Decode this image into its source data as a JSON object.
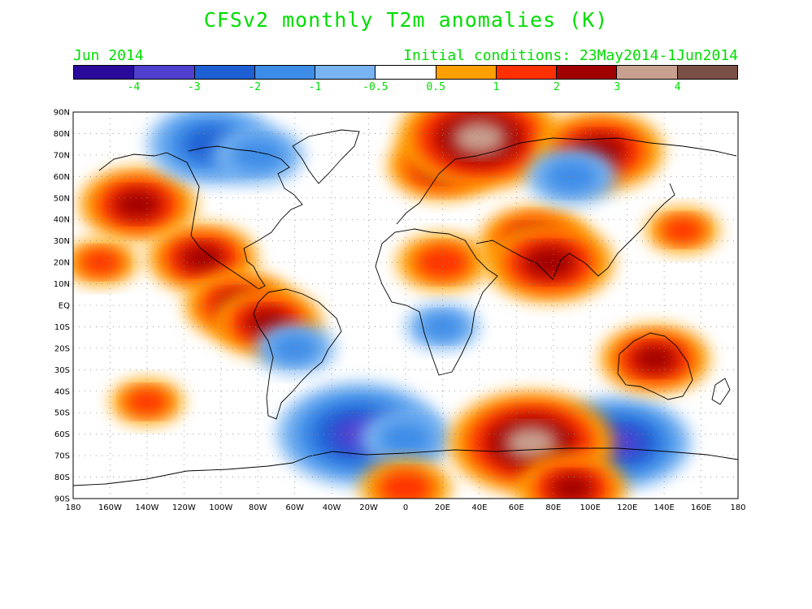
{
  "header": {
    "title": "CFSv2 monthly T2m anomalies (K)",
    "left_label": "Jun 2014",
    "right_label": "Initial conditions: 23May2014-1Jun2014"
  },
  "colorbar": {
    "colors": [
      "#2a0a9a",
      "#5040d0",
      "#1e5fd4",
      "#3c8ce8",
      "#78b4f2",
      "#ffffff",
      "#ffa000",
      "#ff3000",
      "#a00000",
      "#c8a090",
      "#7a5046"
    ],
    "tick_labels": [
      "-4",
      "-3",
      "-2",
      "-1",
      "-0.5",
      "0.5",
      "1",
      "2",
      "3",
      "4"
    ]
  },
  "axes": {
    "lat_labels": [
      "90N",
      "80N",
      "70N",
      "60N",
      "50N",
      "40N",
      "30N",
      "20N",
      "10N",
      "EQ",
      "10S",
      "20S",
      "30S",
      "40S",
      "50S",
      "60S",
      "70S",
      "80S",
      "90S"
    ],
    "lon_labels": [
      "180",
      "160W",
      "140W",
      "120W",
      "100W",
      "80W",
      "60W",
      "40W",
      "20W",
      "0",
      "20E",
      "40E",
      "60E",
      "80E",
      "100E",
      "120E",
      "140E",
      "160E",
      "180"
    ],
    "grid": "dotted"
  },
  "chart_data": {
    "type": "heatmap",
    "title": "CFSv2 monthly T2m anomalies (K)",
    "xlim": [
      -180,
      180
    ],
    "ylim": [
      -90,
      90
    ],
    "color_levels": [
      -4,
      -3,
      -2,
      -1,
      -0.5,
      0.5,
      1,
      2,
      3,
      4
    ],
    "units": "K",
    "anomaly_regions": [
      {
        "lon": -145,
        "lat": 47,
        "value": 2.2
      },
      {
        "lon": -110,
        "lat": 22,
        "value": 2.0
      },
      {
        "lon": -90,
        "lat": 0,
        "value": 2.0
      },
      {
        "lon": -75,
        "lat": -8,
        "value": 2.0
      },
      {
        "lon": -105,
        "lat": 75,
        "value": -2.5
      },
      {
        "lon": -80,
        "lat": 70,
        "value": -1.5
      },
      {
        "lon": -60,
        "lat": -20,
        "value": -1.2
      },
      {
        "lon": -25,
        "lat": -60,
        "value": -3.5
      },
      {
        "lon": 0,
        "lat": -62,
        "value": -1.5
      },
      {
        "lon": 115,
        "lat": -64,
        "value": -3.0
      },
      {
        "lon": 68,
        "lat": -64,
        "value": 3.5
      },
      {
        "lon": 20,
        "lat": 65,
        "value": 2.0
      },
      {
        "lon": 40,
        "lat": 78,
        "value": 3.5
      },
      {
        "lon": 20,
        "lat": 20,
        "value": 1.5
      },
      {
        "lon": 70,
        "lat": 30,
        "value": 2.0
      },
      {
        "lon": 78,
        "lat": 20,
        "value": 2.5
      },
      {
        "lon": 105,
        "lat": 72,
        "value": 2.5
      },
      {
        "lon": 90,
        "lat": 60,
        "value": -1.5
      },
      {
        "lon": 135,
        "lat": -25,
        "value": 2.0
      },
      {
        "lon": 20,
        "lat": -10,
        "value": -1.0
      },
      {
        "lon": -165,
        "lat": 20,
        "value": 1.0
      },
      {
        "lon": -140,
        "lat": -45,
        "value": 1.0
      },
      {
        "lon": 150,
        "lat": 35,
        "value": 1.0
      },
      {
        "lon": 0,
        "lat": -85,
        "value": 1.5
      },
      {
        "lon": 90,
        "lat": -85,
        "value": 2.0
      }
    ]
  }
}
